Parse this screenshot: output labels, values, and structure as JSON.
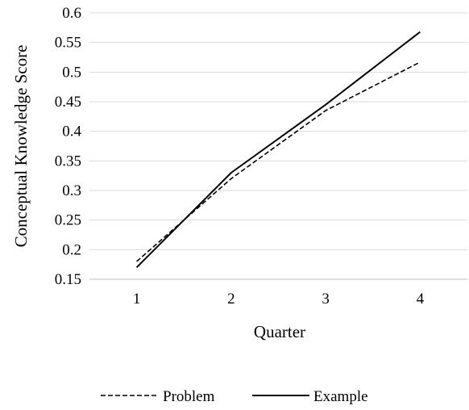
{
  "chart_data": {
    "type": "line",
    "title": "",
    "xlabel": "Quarter",
    "ylabel": "Conceptual Knowledge Score",
    "categories": [
      "1",
      "2",
      "3",
      "4"
    ],
    "ylim": [
      0.15,
      0.6
    ],
    "yticks": [
      "0.15",
      "0.2",
      "0.25",
      "0.3",
      "0.35",
      "0.4",
      "0.45",
      "0.5",
      "0.55",
      "0.6"
    ],
    "grid": "horizontal",
    "legend_position": "bottom",
    "series": [
      {
        "name": "Problem",
        "values": [
          0.18,
          0.32,
          0.435,
          0.517
        ],
        "dash": "dashed",
        "color": "#000000"
      },
      {
        "name": "Example",
        "values": [
          0.17,
          0.33,
          0.445,
          0.568
        ],
        "dash": "solid",
        "color": "#000000"
      }
    ]
  }
}
